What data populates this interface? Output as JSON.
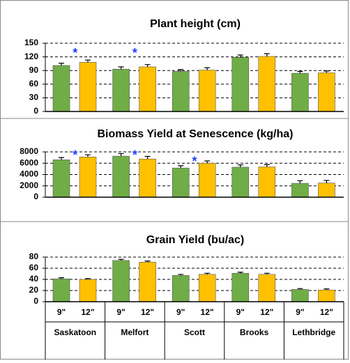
{
  "chart_data": [
    {
      "type": "bar",
      "title": "Plant height  (cm)",
      "ylim": [
        0,
        150
      ],
      "yticks": [
        0,
        30,
        60,
        90,
        120,
        150
      ],
      "grid": true,
      "series": [
        {
          "name": "9\"",
          "color": "#70ad47",
          "values": [
            101,
            93,
            88,
            119,
            84
          ],
          "errors": [
            5,
            5,
            4,
            5,
            4
          ]
        },
        {
          "name": "12\"",
          "color": "#ffc000",
          "values": [
            108,
            98,
            91,
            121,
            85
          ],
          "errors": [
            5,
            5,
            5,
            6,
            4
          ]
        }
      ],
      "annotations": [
        {
          "text": "*",
          "x": 0,
          "y": 133
        },
        {
          "text": "*",
          "x": 1,
          "y": 133
        }
      ]
    },
    {
      "type": "bar",
      "title": "Biomass Yield at Senescence (kg/ha)",
      "ylim": [
        0,
        8000
      ],
      "yticks": [
        0,
        2000,
        4000,
        6000,
        8000
      ],
      "grid": true,
      "series": [
        {
          "name": "9\"",
          "color": "#70ad47",
          "values": [
            6600,
            7250,
            5150,
            5300,
            2450
          ],
          "errors": [
            400,
            450,
            400,
            400,
            450
          ]
        },
        {
          "name": "12\"",
          "color": "#ffc000",
          "values": [
            7100,
            6750,
            6000,
            5350,
            2500
          ],
          "errors": [
            400,
            450,
            400,
            400,
            450
          ]
        }
      ],
      "annotations": [
        {
          "text": "*",
          "x": 0,
          "y": 7800
        },
        {
          "text": "*",
          "x": 1,
          "y": 7800
        },
        {
          "text": "*",
          "x": 2,
          "y": 6700
        }
      ]
    },
    {
      "type": "bar",
      "title": "Grain Yield (bu/ac)",
      "ylim": [
        0,
        80
      ],
      "yticks": [
        0,
        20,
        40,
        60,
        80
      ],
      "grid": true,
      "categories": [
        "Saskatoon",
        "Melfort",
        "Scott",
        "Brooks",
        "Lethbridge"
      ],
      "series": [
        {
          "name": "9\"",
          "color": "#70ad47",
          "values": [
            41,
            74,
            47,
            51,
            22
          ],
          "errors": [
            2,
            2,
            2,
            2,
            1.5
          ]
        },
        {
          "name": "12\"",
          "color": "#ffc000",
          "values": [
            40,
            71,
            49,
            49,
            21
          ],
          "errors": [
            1.5,
            2,
            2,
            2,
            2
          ]
        }
      ],
      "annotations": []
    }
  ]
}
